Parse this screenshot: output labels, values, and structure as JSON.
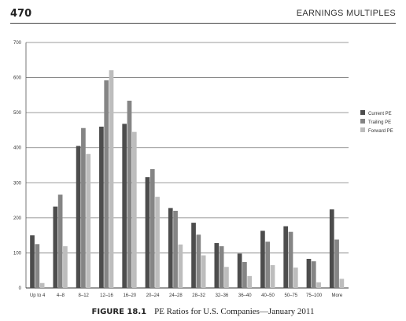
{
  "header": {
    "page_number": "470",
    "section_title": "EARNINGS MULTIPLES"
  },
  "caption": {
    "label": "FIGURE 18.1",
    "text": "PE Ratios for U.S. Companies—January 2011"
  },
  "chart_data": {
    "type": "bar",
    "title": "",
    "xlabel": "",
    "ylabel": "",
    "ylim": [
      0,
      700
    ],
    "yticks": [
      0,
      100,
      200,
      300,
      400,
      500,
      600,
      700
    ],
    "grid": true,
    "legend_position": "right",
    "categories": [
      "Up to 4",
      "4–8",
      "8–12",
      "12–16",
      "16–20",
      "20–24",
      "24–28",
      "28–32",
      "32–36",
      "36–40",
      "40–50",
      "50–75",
      "75–100",
      "More"
    ],
    "series": [
      {
        "name": "Current PE",
        "color": "#4d4d4d",
        "values": [
          150,
          232,
          405,
          460,
          468,
          316,
          228,
          186,
          128,
          98,
          163,
          176,
          83,
          224
        ]
      },
      {
        "name": "Trailing PE",
        "color": "#858585",
        "values": [
          125,
          266,
          456,
          592,
          534,
          339,
          220,
          152,
          119,
          74,
          132,
          160,
          76,
          138
        ]
      },
      {
        "name": "Forward PE",
        "color": "#bdbdbd",
        "values": [
          14,
          119,
          382,
          621,
          445,
          260,
          124,
          93,
          60,
          34,
          65,
          58,
          16,
          26
        ]
      }
    ]
  }
}
